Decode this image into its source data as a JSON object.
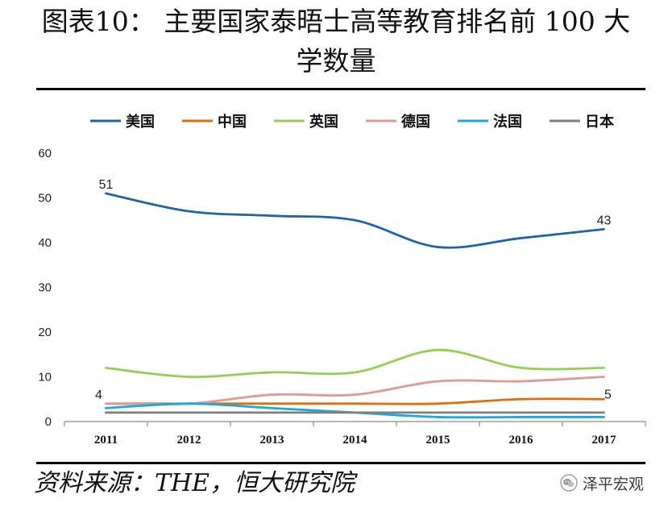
{
  "chart_data": {
    "type": "line",
    "title": [
      "图表10： 主要国家泰晤士高等教育排名前 100 大",
      "学数量"
    ],
    "categories": [
      "2011",
      "2012",
      "2013",
      "2014",
      "2015",
      "2016",
      "2017"
    ],
    "ylim": [
      0,
      60
    ],
    "yticks": [
      0,
      10,
      20,
      30,
      40,
      50,
      60
    ],
    "grid": false,
    "smooth": true,
    "legend_position": "top",
    "series": [
      {
        "name": "美国",
        "color": "#1f63aa",
        "values": [
          51,
          47,
          46,
          45,
          39,
          41,
          43
        ]
      },
      {
        "name": "中国",
        "color": "#e26b0a",
        "values": [
          4,
          4,
          4,
          4,
          4,
          5,
          5
        ]
      },
      {
        "name": "英国",
        "color": "#92d050",
        "values": [
          12,
          10,
          11,
          11,
          16,
          12,
          12
        ]
      },
      {
        "name": "德国",
        "color": "#e09a94",
        "values": [
          4,
          4,
          6,
          6,
          9,
          9,
          10
        ]
      },
      {
        "name": "法国",
        "color": "#19a8e0",
        "values": [
          3,
          4,
          3,
          2,
          1,
          1,
          1
        ]
      },
      {
        "name": "日本",
        "color": "#7f7f7f",
        "values": [
          2,
          2,
          2,
          2,
          2,
          2,
          2
        ]
      }
    ],
    "annotations": [
      {
        "series_index": 0,
        "index": 0,
        "text": "51",
        "position": "above"
      },
      {
        "series_index": 0,
        "index": 6,
        "text": "43",
        "position": "above"
      },
      {
        "series_index": 1,
        "index": 0,
        "text": "4",
        "position": "above-left"
      },
      {
        "series_index": 1,
        "index": 6,
        "text": "5",
        "position": "above-right"
      }
    ]
  },
  "footer": {
    "source": "资料来源：THE，恒大研究院",
    "watermark": "泽平宏观"
  }
}
